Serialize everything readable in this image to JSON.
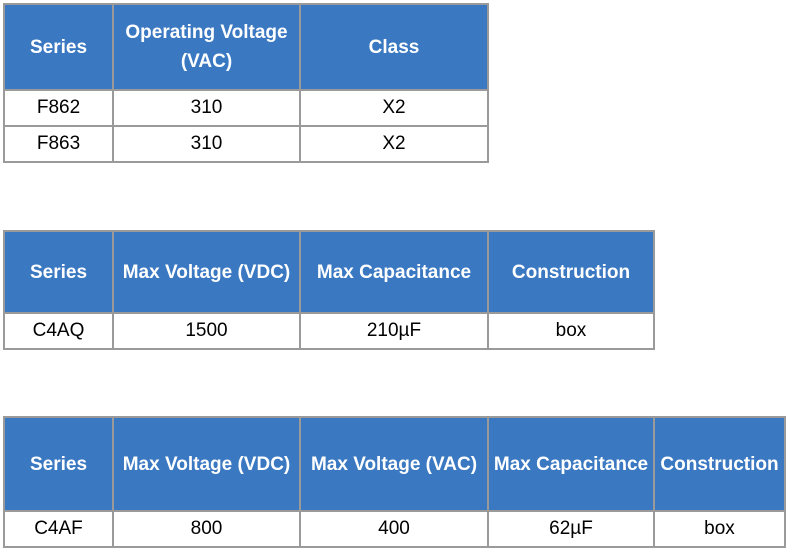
{
  "table1": {
    "headers": [
      "Series",
      "Operating Voltage (VAC)",
      "Class"
    ],
    "rows": [
      [
        "F862",
        "310",
        "X2"
      ],
      [
        "F863",
        "310",
        "X2"
      ]
    ]
  },
  "table2": {
    "headers": [
      "Series",
      "Max Voltage (VDC)",
      "Max Capacitance",
      "Construction"
    ],
    "rows": [
      [
        "C4AQ",
        "1500",
        "210µF",
        "box"
      ]
    ]
  },
  "table3": {
    "headers": [
      "Series",
      "Max Voltage (VDC)",
      "Max Voltage (VAC)",
      "Max Capacitance",
      "Construction"
    ],
    "rows": [
      [
        "C4AF",
        "800",
        "400",
        "62µF",
        "box"
      ]
    ]
  },
  "colors": {
    "header_bg": "#3a78c2",
    "header_text": "#ffffff",
    "border": "#9a9a9a"
  }
}
